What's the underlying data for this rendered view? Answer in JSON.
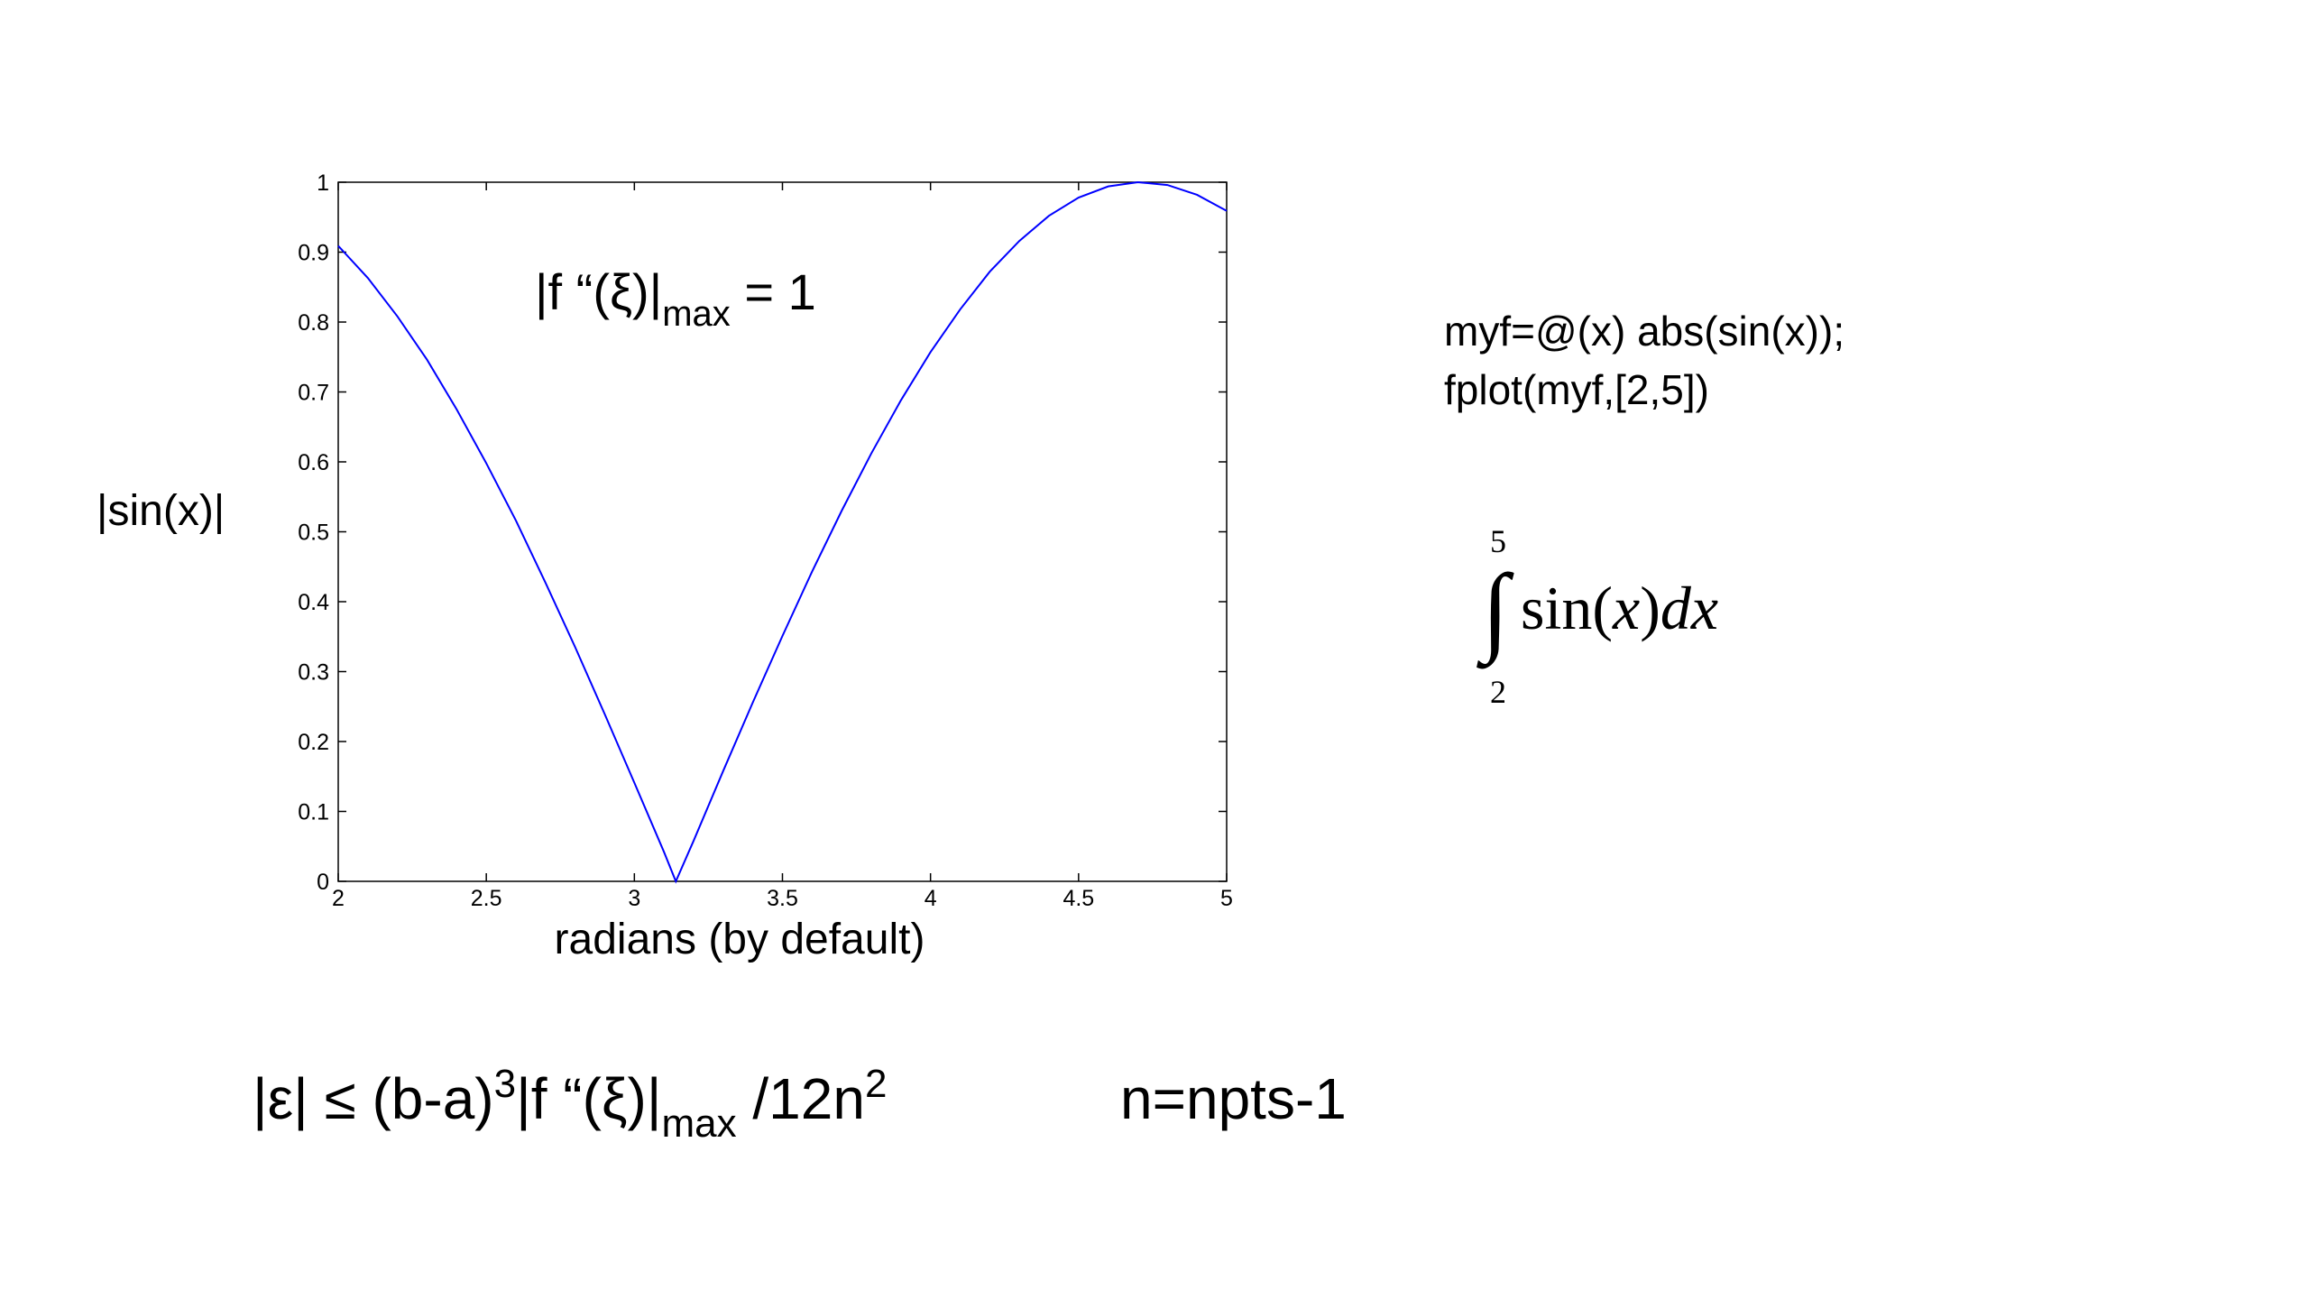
{
  "chart_data": {
    "type": "line",
    "annotation": [
      "|f “(ξ)|",
      "max",
      " = 1"
    ],
    "xlabel": "radians (by default)",
    "ylabel": "|sin(x)|",
    "x": [
      2.0,
      2.1,
      2.2,
      2.3,
      2.4,
      2.5,
      2.6,
      2.7,
      2.8,
      2.9,
      3.0,
      3.1,
      3.14,
      3.2,
      3.3,
      3.4,
      3.5,
      3.6,
      3.7,
      3.8,
      3.9,
      4.0,
      4.1,
      4.2,
      4.3,
      4.4,
      4.5,
      4.6,
      4.7,
      4.8,
      4.9,
      5.0
    ],
    "series": [
      {
        "color": "#0000ff",
        "values": [
          0.909,
          0.863,
          0.808,
          0.746,
          0.675,
          0.598,
          0.516,
          0.427,
          0.335,
          0.239,
          0.141,
          0.042,
          0,
          0.058,
          0.158,
          0.256,
          0.351,
          0.443,
          0.53,
          0.612,
          0.688,
          0.757,
          0.818,
          0.872,
          0.916,
          0.952,
          0.978,
          0.994,
          1.0,
          0.996,
          0.982,
          0.959
        ]
      }
    ],
    "xlim": [
      2,
      5
    ],
    "xticks": [
      2,
      2.5,
      3,
      3.5,
      4,
      4.5,
      5
    ],
    "ylim": [
      0,
      1
    ],
    "yticks": [
      0,
      0.1,
      0.2,
      0.3,
      0.4,
      0.5,
      0.6,
      0.7,
      0.8,
      0.9,
      1
    ],
    "grid": false
  },
  "code": [
    "myf=@(x) abs(sin(x));",
    "fplot(myf,[2,5])"
  ],
  "integral": {
    "upper": "5",
    "lower": "2",
    "sign": "∫",
    "parts": [
      "sin(",
      "x",
      ")",
      "dx"
    ]
  },
  "error_bound": [
    "|ε| ≤ (b-a)",
    "3",
    "|f “(ξ)|",
    "max",
    " /12n",
    "2"
  ],
  "n_definition": "n=npts-1"
}
